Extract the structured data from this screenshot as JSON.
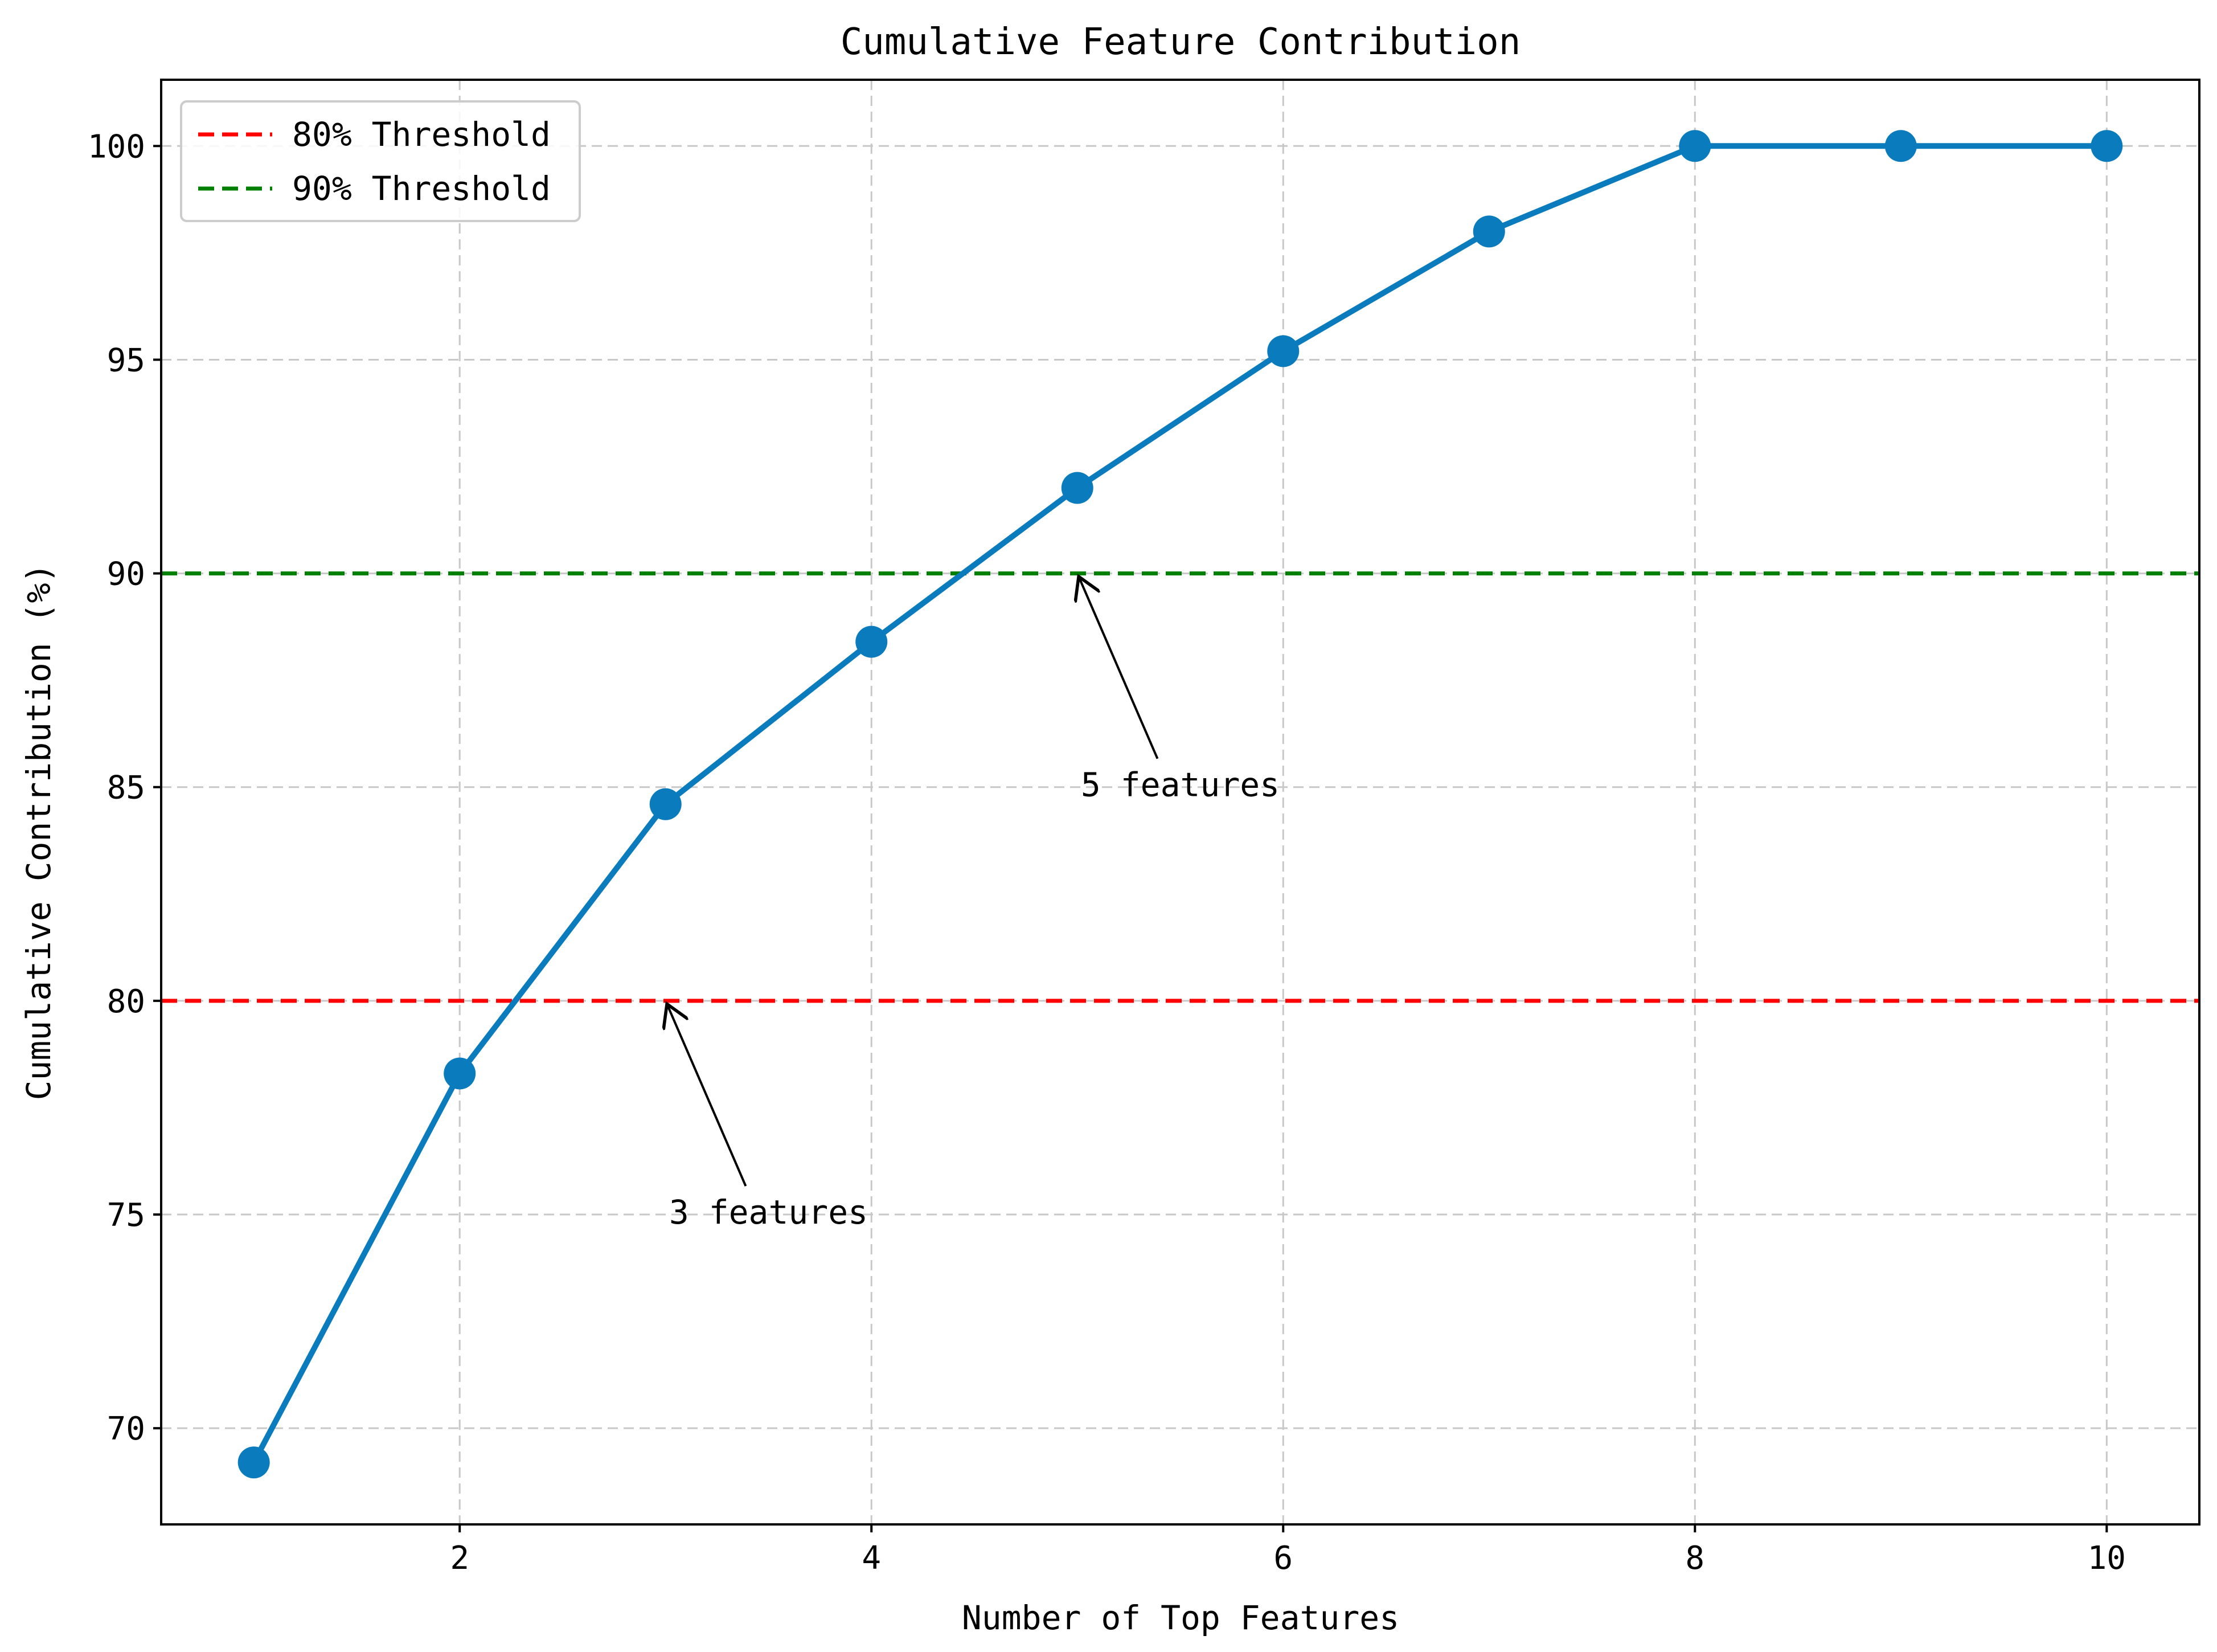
{
  "chart_data": {
    "type": "line",
    "title": "Cumulative Feature Contribution",
    "xlabel": "Number of Top Features",
    "ylabel": "Cumulative Contribution (%)",
    "xlim": [
      0.55,
      10.45
    ],
    "ylim": [
      67.75,
      101.55
    ],
    "x_ticks": [
      2,
      4,
      6,
      8,
      10
    ],
    "y_ticks": [
      70,
      75,
      80,
      85,
      90,
      95,
      100
    ],
    "grid": true,
    "legend_position": "top-left",
    "series": [
      {
        "color": "#0a7bbd",
        "x": [
          1,
          2,
          3,
          4,
          5,
          6,
          7,
          8,
          9,
          10
        ],
        "y": [
          69.2,
          78.3,
          84.6,
          88.4,
          92.0,
          95.2,
          98.0,
          100.0,
          100.0,
          100.0
        ]
      }
    ],
    "thresholds": [
      {
        "label": "80% Threshold",
        "y": 80,
        "color": "#ff0000"
      },
      {
        "label": "90% Threshold",
        "y": 90,
        "color": "#008000"
      }
    ],
    "annotations": [
      {
        "text": "3 features",
        "point": [
          3,
          80
        ],
        "text_at": [
          3.5,
          75
        ]
      },
      {
        "text": "5 features",
        "point": [
          5,
          90
        ],
        "text_at": [
          5.5,
          85
        ]
      }
    ]
  }
}
